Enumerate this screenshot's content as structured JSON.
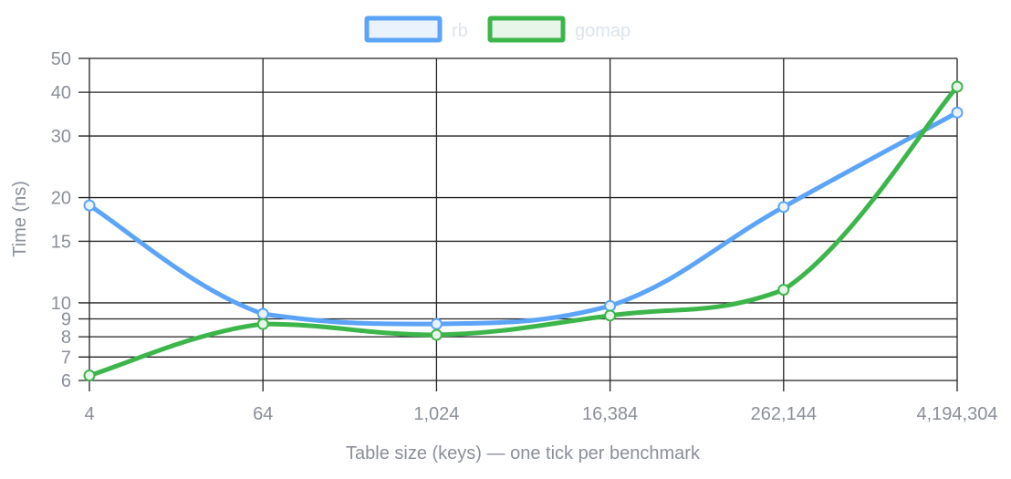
{
  "chart_data": {
    "type": "line",
    "xlabel": "Table size (keys) — one tick per benchmark",
    "ylabel": "Time (ns)",
    "yscale": "log",
    "ylim": [
      6,
      50
    ],
    "categories": [
      "4",
      "64",
      "1,024",
      "16,384",
      "262,144",
      "4,194,304"
    ],
    "yticks": [
      6,
      7,
      8,
      9,
      10,
      15,
      20,
      30,
      40,
      50
    ],
    "grid": true,
    "legend_position": "top-center",
    "series": [
      {
        "name": "rb",
        "color": "#5ba4f7",
        "fill": "#eaf3fd",
        "values": [
          19.0,
          9.3,
          8.7,
          9.8,
          18.8,
          35.0
        ]
      },
      {
        "name": "gomap",
        "color": "#3cb54a",
        "fill": "#e8f6ea",
        "values": [
          6.2,
          8.7,
          8.1,
          9.2,
          10.9,
          41.5
        ]
      }
    ]
  }
}
